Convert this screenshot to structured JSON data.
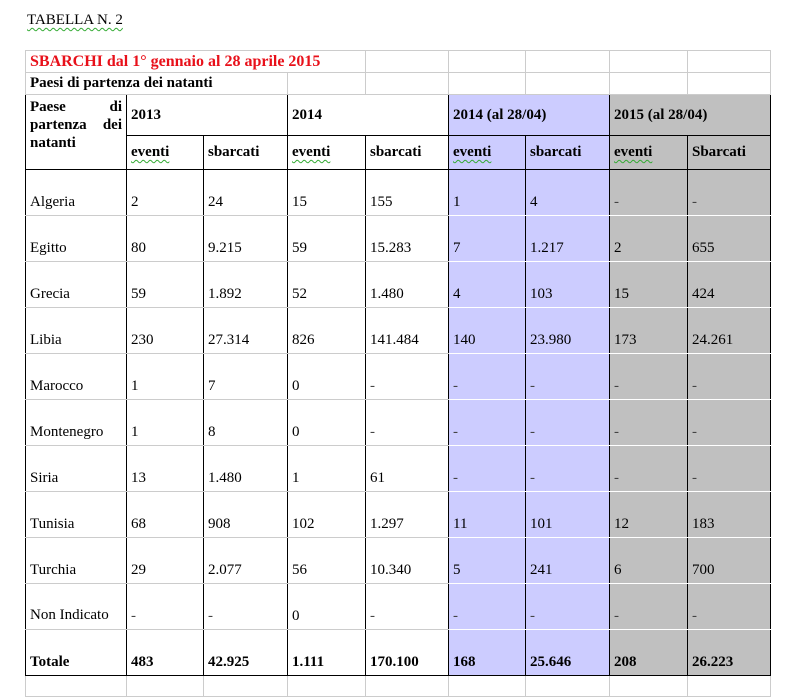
{
  "caption": "TABELLA N. 2",
  "title": "SBARCHI dal 1° gennaio al 28 aprile 2015",
  "subtitle": "Paesi di partenza dei natanti",
  "header": {
    "country_col": "Paese di partenza dei natanti",
    "groups": [
      "2013",
      "2014",
      "2014 (al 28/04)",
      "2015 (al 28/04)"
    ],
    "sub": [
      "eventi",
      "sbarcati",
      "eventi",
      "sbarcati",
      "eventi",
      "sbarcati",
      "eventi",
      "Sbarcati"
    ]
  },
  "colors": {
    "col_2014_partial": "#ccccff",
    "col_2015_partial": "#c0c0c0",
    "title": "#e8101a"
  },
  "rows": [
    {
      "country": "Algeria",
      "values": [
        "2",
        "24",
        "15",
        "155",
        "1",
        "4",
        "-",
        "-"
      ]
    },
    {
      "country": "Egitto",
      "values": [
        "80",
        "9.215",
        "59",
        "15.283",
        "7",
        "1.217",
        "2",
        "655"
      ]
    },
    {
      "country": "Grecia",
      "values": [
        "59",
        "1.892",
        "52",
        "1.480",
        "4",
        "103",
        "15",
        "424"
      ]
    },
    {
      "country": "Libia",
      "values": [
        "230",
        "27.314",
        "826",
        "141.484",
        "140",
        "23.980",
        "173",
        "24.261"
      ]
    },
    {
      "country": "Marocco",
      "values": [
        "1",
        "7",
        "0",
        "-",
        "-",
        "-",
        "-",
        "-"
      ]
    },
    {
      "country": "Montenegro",
      "values": [
        "1",
        "8",
        "0",
        "-",
        "-",
        "-",
        "-",
        "-"
      ]
    },
    {
      "country": "Siria",
      "values": [
        "13",
        "1.480",
        "1",
        "61",
        "-",
        "-",
        "-",
        "-"
      ]
    },
    {
      "country": "Tunisia",
      "values": [
        "68",
        "908",
        "102",
        "1.297",
        "11",
        "101",
        "12",
        "183"
      ]
    },
    {
      "country": "Turchia",
      "values": [
        "29",
        "2.077",
        "56",
        "10.340",
        "5",
        "241",
        "6",
        "700"
      ]
    },
    {
      "country": "Non Indicato",
      "values": [
        "-",
        "-",
        "0",
        "-",
        "-",
        "-",
        "-",
        "-"
      ]
    },
    {
      "country": "Totale",
      "values": [
        "483",
        "42.925",
        "1.111",
        "170.100",
        "168",
        "25.646",
        "208",
        "26.223"
      ]
    }
  ]
}
